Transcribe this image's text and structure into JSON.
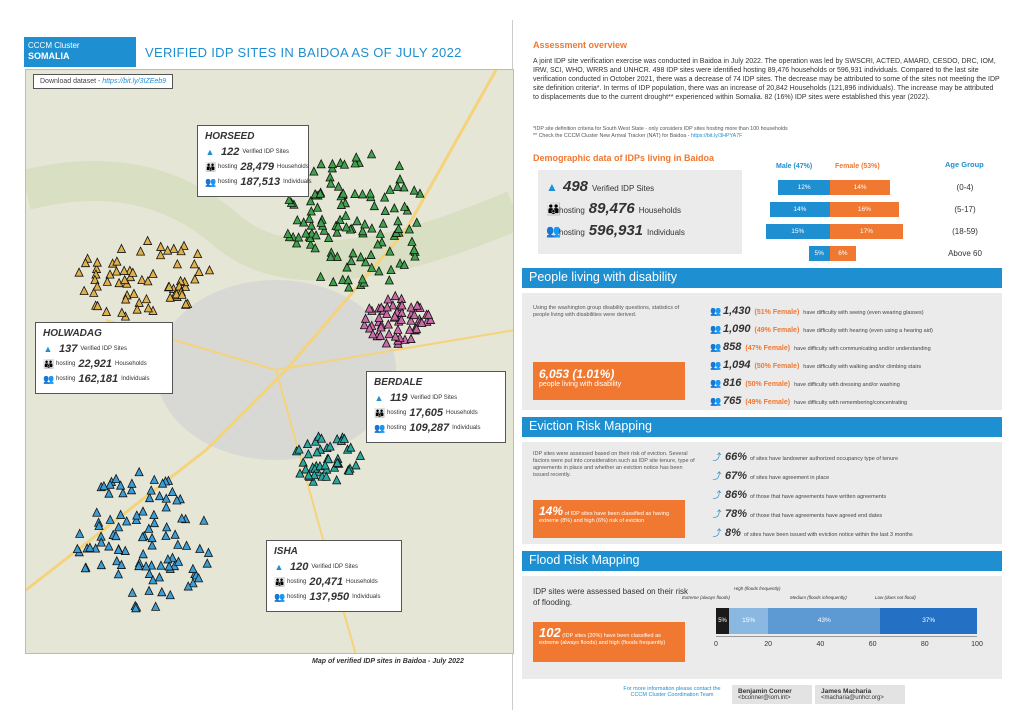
{
  "header": {
    "logo_line1": "CCCM Cluster",
    "logo_line2": "SOMALIA",
    "title": "VERIFIED IDP SITES IN BAIDOA AS OF JULY 2022"
  },
  "map": {
    "download_label": "Download dataset - ",
    "download_link": "https://bit.ly/3IZEeb9",
    "caption": "Map of verified IDP sites in Baidoa - July 2022",
    "sites_label": "Verified IDP Sites",
    "hosting_label": "hosting",
    "households_label": "Households",
    "individuals_label": "Individuals",
    "regions": [
      {
        "name": "HORSEED",
        "sites": "122",
        "households": "28,479",
        "individuals": "187,513"
      },
      {
        "name": "HOLWADAG",
        "sites": "137",
        "households": "22,921",
        "individuals": "162,181"
      },
      {
        "name": "BERDALE",
        "sites": "119",
        "households": "17,605",
        "individuals": "109,287"
      },
      {
        "name": "ISHA",
        "sites": "120",
        "households": "20,471",
        "individuals": "137,950"
      }
    ]
  },
  "overview": {
    "title": "Assessment overview",
    "text": "A joint IDP site verification exercise was conducted in Baidoa in July 2022. The operation was led by SWSCRI, ACTED, AMARD, CESDO, DRC, IOM, IRW, SCI, WHO, WRRS and UNHCR. 498 IDP sites were identified hosting 89,476 households or 596,931 individuals. Compared to the last site verification conducted in October 2021, there was a decrease of 74 IDP sites. The decrease may be attributed to some of the sites not meeting the IDP site definition criteria*. In terms of IDP population, there was an increase of 20,842 Households (121,896 individuals). The increase may be attributed to displacements due to the current drought** experienced within Somalia. 82 (16%) IDP sites were established this year (2022).",
    "note1": "*IDP site definition criteria for South West State - only considers IDP sites hosting more than 100 households",
    "note2": "** Check the CCCM Cluster New Arrival Tracker (NAT) for Baidoa - ",
    "note2_link": "https://bit.ly/3HPYA7F"
  },
  "demographic": {
    "title": "Demographic data of IDPs living in Baidoa",
    "sites": "498",
    "sites_label": "Verified IDP Sites",
    "hosting_label": "hosting",
    "households": "89,476",
    "households_label": "Households",
    "individuals": "596,931",
    "individuals_label": "Individuals",
    "male_header": "Male (47%)",
    "female_header": "Female (53%)",
    "age_header": "Age Group",
    "male_color": "#1e8fd1",
    "female_color": "#f07830"
  },
  "chart_data": {
    "type": "bar",
    "categories": [
      "(0-4)",
      "(5-17)",
      "(18-59)",
      "Above 60"
    ],
    "series": [
      {
        "name": "Male (47%)",
        "values": [
          12,
          14,
          15,
          5
        ]
      },
      {
        "name": "Female (53%)",
        "values": [
          14,
          16,
          17,
          6
        ]
      }
    ],
    "title": "",
    "xlabel": "",
    "ylabel": ""
  },
  "disability": {
    "title": "People living with disability",
    "intro": "Using the washington group disability questions, statistics of people living with disabilities were derived.",
    "total": "6,053 (1.01%)",
    "total_label": "people living with disability",
    "items": [
      {
        "n": "1,430",
        "f": "(51% Female)",
        "t": "have difficulty with seeing (even wearing glasses)"
      },
      {
        "n": "1,090",
        "f": "(49% Female)",
        "t": "have difficulty with hearing (even using a hearing aid)"
      },
      {
        "n": "858",
        "f": "(47% Female)",
        "t": "have difficulty with communicating and/or understanding"
      },
      {
        "n": "1,094",
        "f": "(50% Female)",
        "t": "have difficulty with walking and/or climbing stairs"
      },
      {
        "n": "816",
        "f": "(50% Female)",
        "t": "have difficulty with dressing and/or washing"
      },
      {
        "n": "765",
        "f": "(49% Female)",
        "t": "have difficulty with remembering/concentrating"
      }
    ]
  },
  "eviction": {
    "title": "Eviction Risk Mapping",
    "intro": "IDP sites were assessed based on their risk of eviction. Several factors were put into consideration such as IDP site tenure, type of agreements in place and whether an eviction notice has been issued recently.",
    "box_pct": "14%",
    "box_text": "of IDP sites have been classified as having extreme (8%) and high (6%) risk of eviction",
    "items": [
      {
        "n": "66%",
        "t": "of sites have landowner authorized occupancy type of tenure"
      },
      {
        "n": "67%",
        "t": "of sites have agreement in place"
      },
      {
        "n": "86%",
        "t": "of those that have agreements have written agreements"
      },
      {
        "n": "78%",
        "t": "of those that have agreements have agreed end dates"
      },
      {
        "n": "8%",
        "t": "of sites have been issued with eviction notice within the last 3 months"
      }
    ]
  },
  "flood": {
    "title": "Flood Risk Mapping",
    "intro": "IDP sites were assessed based on their risk of flooding.",
    "box_num": "102",
    "box_text": "(IDP sites (20%) have been classified as extreme (always floods) and high (floods frequently)",
    "legend_extreme": "Extreme (always floods)",
    "legend_high": "High (floods frequently)",
    "legend_medium": "Medium (floods infrequently)",
    "legend_low": "Low (does not flood)",
    "seg_extreme": "5%",
    "seg_high": "15%",
    "seg_medium": "43%",
    "seg_low": "37%",
    "values": [
      5,
      15,
      43,
      37
    ],
    "ticks": [
      "0",
      "20",
      "40",
      "60",
      "80",
      "100"
    ]
  },
  "footer": {
    "more_info": "For more information please contact the CCCM Cluster Coordination Team",
    "c1_name": "Benjamin Conner",
    "c1_email": "<bconner@iom.int>",
    "c2_name": "James Macharia",
    "c2_email": "<macharia@unhcr.org>"
  }
}
